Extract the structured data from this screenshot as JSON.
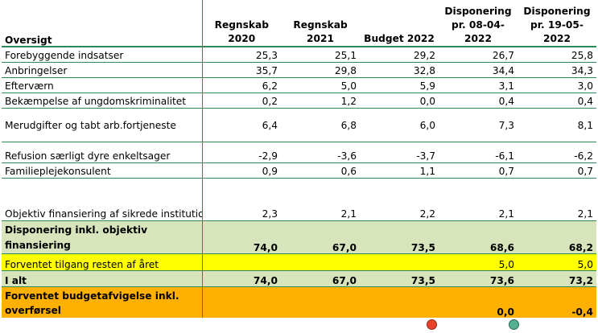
{
  "table": {
    "header": {
      "label": "Oversigt",
      "columns": [
        "Regnskab 2020",
        "Regnskab 2021",
        "Budget 2022",
        "Disponering pr. 08-04-2022",
        "Disponering pr. 19-05-2022"
      ]
    },
    "rows": [
      {
        "label": "Forebyggende indsatser",
        "values": [
          "25,3",
          "25,1",
          "29,2",
          "26,7",
          "25,8"
        ]
      },
      {
        "label": "Anbringelser",
        "values": [
          "35,7",
          "29,8",
          "32,8",
          "34,4",
          "34,3"
        ]
      },
      {
        "label": "Efterværn",
        "values": [
          "6,2",
          "5,0",
          "5,9",
          "3,1",
          "3,0"
        ]
      },
      {
        "label": "Bekæmpelse af ungdomskriminalitet",
        "values": [
          "0,2",
          "1,2",
          "0,0",
          "0,4",
          "0,4"
        ]
      },
      {
        "label": "Merudgifter og tabt arb.fortjeneste",
        "values": [
          "6,4",
          "6,8",
          "6,0",
          "7,3",
          "8,1"
        ]
      },
      {
        "label": "Refusion særligt dyre enkeltsager",
        "values": [
          "-2,9",
          "-3,6",
          "-3,7",
          "-6,1",
          "-6,2"
        ]
      },
      {
        "label": "Familieplejekonsulent",
        "values": [
          "0,9",
          "0,6",
          "1,1",
          "0,7",
          "0,7"
        ]
      },
      {
        "label": "Objektiv finansiering af sikrede institutioner, børnehuse og tilsyn plejefamilier",
        "values": [
          "2,3",
          "2,1",
          "2,2",
          "2,1",
          "2,1"
        ]
      }
    ],
    "subtotal": {
      "label": "Disponering inkl. objektiv finansiering",
      "values": [
        "74,0",
        "67,0",
        "73,5",
        "68,6",
        "68,2"
      ]
    },
    "expected": {
      "label": "Forventet tilgang resten af året",
      "values": [
        "",
        "",
        "",
        "5,0",
        "5,0"
      ]
    },
    "total": {
      "label": "I alt",
      "values": [
        "74,0",
        "67,0",
        "73,5",
        "73,6",
        "73,2"
      ]
    },
    "deviation": {
      "label": "Forventet budgetafvigelse inkl. overførsel",
      "values": [
        "",
        "",
        "",
        "0,0",
        "-0,4"
      ],
      "indicator_colors": {
        "col4": "#e8412c",
        "col5": "#54b08f"
      }
    }
  },
  "colors": {
    "grid": "#2e8b57",
    "subtotal_bg": "#d8e4bc",
    "expected_bg": "#ffff00",
    "deviation_bg": "#ffb000"
  }
}
